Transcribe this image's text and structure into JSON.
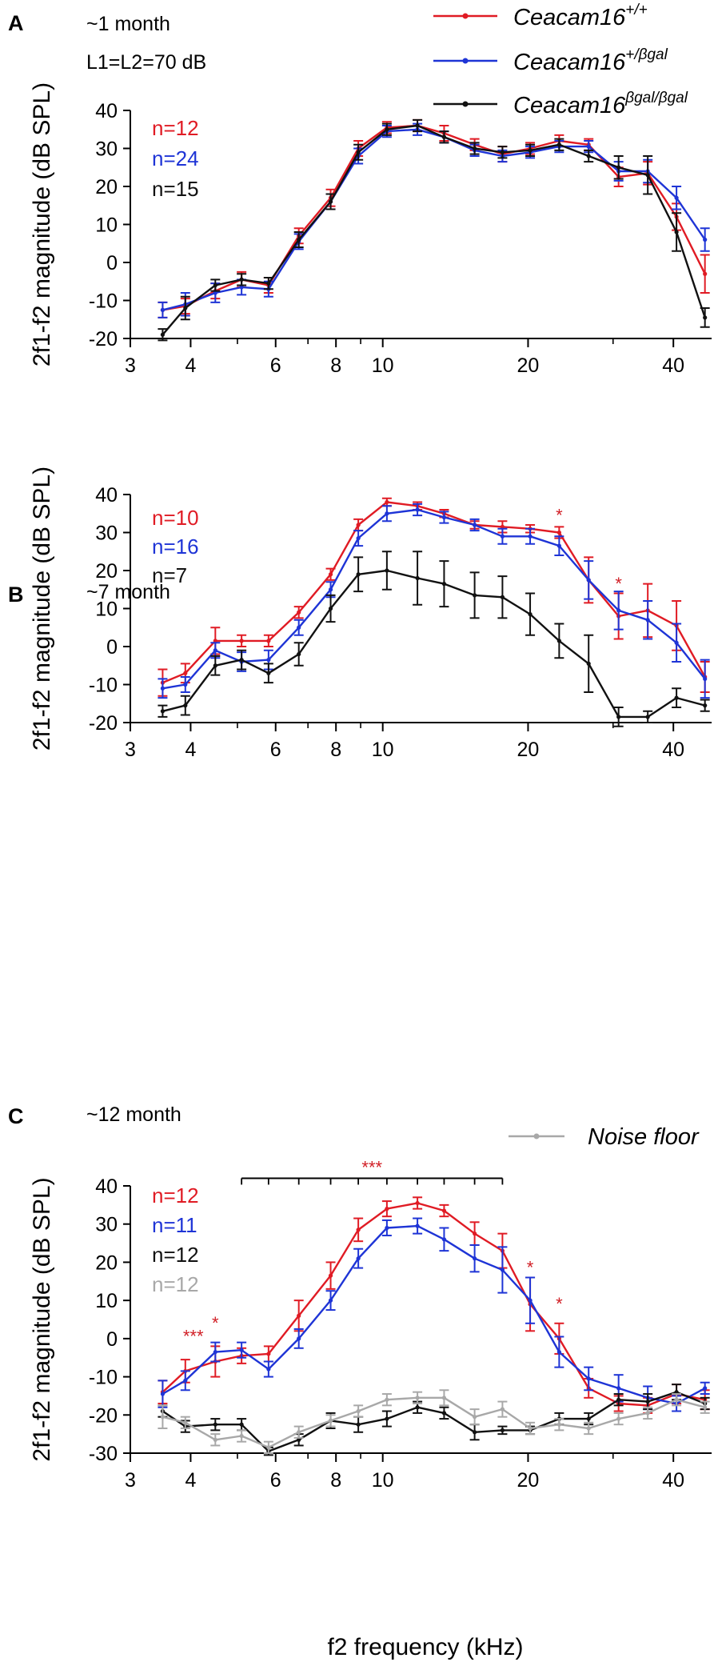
{
  "colors": {
    "wt": "#e01b24",
    "het": "#1e34d6",
    "ko": "#111111",
    "noise": "#a8a8a8",
    "star": "#d11f26"
  },
  "legend": [
    {
      "key": "wt",
      "gene": "Ceacam16",
      "genotype": "+/+",
      "color": "#e01b24"
    },
    {
      "key": "het",
      "gene": "Ceacam16",
      "genotype": "+/βgal",
      "color": "#1e34d6"
    },
    {
      "key": "ko",
      "gene": "Ceacam16",
      "genotype": "βgal/βgal",
      "color": "#111111"
    }
  ],
  "noise_legend": {
    "label": "Noise floor",
    "color": "#a8a8a8"
  },
  "xlabel": "f2 frequency (kHz)",
  "ylabel": "2f1-f2 magnitude (dB SPL)",
  "chart_data": [
    {
      "panel": "A",
      "type": "line",
      "title": "~1 month",
      "condition": "L1=L2=70 dB",
      "xscale": "log",
      "xlim": [
        3,
        48
      ],
      "x_ticks": [
        3,
        4,
        6,
        8,
        10,
        20,
        40
      ],
      "ylim": [
        -20,
        40
      ],
      "y_ticks": [
        -20,
        -10,
        0,
        10,
        20,
        30,
        40
      ],
      "n_labels": [
        {
          "text": "n=12",
          "series": "wt"
        },
        {
          "text": "n=24",
          "series": "het"
        },
        {
          "text": "n=15",
          "series": "ko"
        }
      ],
      "x": [
        3.5,
        3.9,
        4.5,
        5.1,
        5.8,
        6.7,
        7.8,
        8.9,
        10.2,
        11.8,
        13.4,
        15.5,
        17.7,
        20.2,
        23.2,
        26.7,
        30.8,
        35.4,
        40.6,
        46.5
      ],
      "series": [
        {
          "name": "Ceacam16+/+",
          "key": "wt",
          "values": [
            -12.5,
            -11.5,
            -7.5,
            -4.5,
            -6,
            7,
            17,
            30,
            35.5,
            36,
            34,
            31,
            28.5,
            30,
            32,
            31,
            22.5,
            23.5,
            12,
            -3
          ],
          "err": [
            2,
            2,
            2,
            2,
            2,
            2,
            2.2,
            2,
            1.5,
            1.5,
            2,
            1.5,
            2,
            1.5,
            1.5,
            1.5,
            2.5,
            3,
            3.5,
            5
          ]
        },
        {
          "name": "Ceacam16+/βgal",
          "key": "het",
          "values": [
            -12.5,
            -11,
            -8,
            -6.5,
            -7,
            5.5,
            16,
            28,
            34.5,
            35,
            33,
            29.5,
            28,
            29,
            30.5,
            30.5,
            24,
            24,
            17,
            6
          ],
          "err": [
            2,
            3,
            2.5,
            2,
            2,
            2,
            2,
            2,
            1.5,
            1.5,
            1.5,
            1.5,
            1.5,
            1.5,
            1.5,
            1.5,
            2.5,
            3,
            3,
            3
          ]
        },
        {
          "name": "Ceacam16βgal/βgal",
          "key": "ko",
          "values": [
            -19,
            -12,
            -6,
            -4.5,
            -5.5,
            6,
            16,
            29,
            35,
            36,
            33,
            30,
            29,
            29.5,
            31,
            28,
            25,
            23,
            8,
            -14.5
          ],
          "err": [
            1.5,
            3,
            1.5,
            1.5,
            1.5,
            2,
            2,
            2,
            1.5,
            1.5,
            1.5,
            1.5,
            1.5,
            1.5,
            1.5,
            1.5,
            3,
            5,
            5,
            2.5
          ]
        }
      ]
    },
    {
      "panel": "B",
      "type": "line",
      "title": "~7 month",
      "xscale": "log",
      "xlim": [
        3,
        48
      ],
      "x_ticks": [
        3,
        4,
        6,
        8,
        10,
        20,
        40
      ],
      "ylim": [
        -20,
        40
      ],
      "y_ticks": [
        -20,
        -10,
        0,
        10,
        20,
        30,
        40
      ],
      "n_labels": [
        {
          "text": "n=10",
          "series": "wt"
        },
        {
          "text": "n=16",
          "series": "het"
        },
        {
          "text": "n=7",
          "series": "ko"
        }
      ],
      "x": [
        3.5,
        3.9,
        4.5,
        5.1,
        5.8,
        6.7,
        7.8,
        8.9,
        10.2,
        11.8,
        13.4,
        15.5,
        17.7,
        20.2,
        23.2,
        26.7,
        30.8,
        35.4,
        40.6,
        46.5
      ],
      "series": [
        {
          "name": "Ceacam16+/+",
          "key": "wt",
          "values": [
            -9.5,
            -7,
            1.5,
            1.5,
            1.5,
            9,
            19,
            32,
            38,
            37,
            35,
            32,
            31.5,
            31,
            30,
            17.5,
            8,
            9.5,
            5.5,
            -8
          ],
          "err": [
            3.5,
            2.5,
            3.5,
            1.5,
            1.5,
            1.5,
            1.5,
            1.5,
            1,
            1,
            1,
            1,
            1.5,
            1,
            1.5,
            6,
            6,
            7,
            6.5,
            4
          ]
        },
        {
          "name": "Ceacam16+/βgal",
          "key": "het",
          "values": [
            -11,
            -10,
            -1,
            -4,
            -3.5,
            5,
            15,
            28.5,
            35,
            36,
            34,
            32,
            29,
            29,
            26.5,
            17.5,
            9.5,
            7,
            1,
            -8.5
          ],
          "err": [
            2.5,
            2,
            2,
            2.5,
            2.5,
            2,
            2,
            2,
            2,
            1.5,
            1.5,
            1.5,
            2,
            2,
            2.5,
            5,
            5,
            5,
            5,
            5
          ]
        },
        {
          "name": "Ceacam16βgal/βgal",
          "key": "ko",
          "values": [
            -17,
            -15.5,
            -5,
            -3.5,
            -7,
            -2,
            10,
            19,
            20,
            18,
            16.5,
            13.5,
            13,
            8.5,
            1.5,
            -4.5,
            -18.5,
            -18.5,
            -13.5,
            -15.5
          ],
          "err": [
            1.5,
            2.5,
            2.5,
            2.5,
            2.5,
            3,
            3.5,
            4.5,
            5,
            7,
            6,
            6,
            5.5,
            5.5,
            4.5,
            7.5,
            2.5,
            1.5,
            2.5,
            1.5
          ]
        }
      ],
      "annotations": [
        {
          "text": "*",
          "x": 23.2,
          "y": 33
        },
        {
          "text": "*",
          "x": 30.8,
          "y": 15
        }
      ]
    },
    {
      "panel": "C",
      "type": "line",
      "title": "~12 month",
      "xscale": "log",
      "xlim": [
        3,
        48
      ],
      "x_ticks": [
        3,
        4,
        6,
        8,
        10,
        20,
        40
      ],
      "ylim": [
        -30,
        40
      ],
      "y_ticks": [
        -30,
        -20,
        -10,
        0,
        10,
        20,
        30,
        40
      ],
      "n_labels": [
        {
          "text": "n=12",
          "series": "wt"
        },
        {
          "text": "n=11",
          "series": "het"
        },
        {
          "text": "n=12",
          "series": "ko"
        },
        {
          "text": "n=12",
          "series": "noise"
        }
      ],
      "x": [
        3.5,
        3.9,
        4.5,
        5.1,
        5.8,
        6.7,
        7.8,
        8.9,
        10.2,
        11.8,
        13.4,
        15.5,
        17.7,
        20.2,
        23.2,
        26.7,
        30.8,
        35.4,
        40.6,
        46.5
      ],
      "series": [
        {
          "name": "Ceacam16+/+",
          "key": "wt",
          "values": [
            -14,
            -8.5,
            -6,
            -4.5,
            -4,
            6,
            16.5,
            28.5,
            34,
            35.5,
            33.5,
            27.5,
            23,
            9,
            0,
            -13,
            -17,
            -17.5,
            -14.5,
            -16
          ],
          "err": [
            3,
            3,
            4,
            2,
            2,
            4,
            3.5,
            3,
            2,
            1.5,
            1.5,
            3,
            4.5,
            7,
            4,
            2.5,
            2,
            2,
            2.5,
            2.5
          ]
        },
        {
          "name": "Ceacam16+/βgal",
          "key": "het",
          "values": [
            -14.5,
            -11,
            -3.5,
            -3,
            -8,
            0,
            10,
            21,
            29,
            29.5,
            26,
            21,
            18,
            10,
            -3.5,
            -10.5,
            -13,
            -15.5,
            -17,
            -13
          ],
          "err": [
            3.5,
            2.5,
            2.5,
            2,
            2,
            2.5,
            2.5,
            2.5,
            2,
            2,
            3,
            3.5,
            6,
            6,
            4,
            3,
            3.5,
            3,
            2,
            1.5
          ]
        },
        {
          "name": "Ceacam16βgal/βgal",
          "key": "ko",
          "values": [
            -19,
            -23,
            -22.5,
            -22.5,
            -29.5,
            -26.5,
            -21.5,
            -22.5,
            -21,
            -18,
            -19.5,
            -24.5,
            -24,
            -24,
            -21,
            -21,
            -16,
            -16.5,
            -14,
            -17
          ],
          "err": [
            1.5,
            1.5,
            1.5,
            1.5,
            1,
            1.5,
            2,
            2,
            2,
            1.5,
            1.5,
            2,
            1,
            1,
            1.5,
            1.5,
            1.5,
            2,
            2,
            1.5
          ]
        },
        {
          "name": "Noise floor",
          "key": "noise",
          "values": [
            -20.5,
            -22,
            -26.5,
            -25.5,
            -28.5,
            -24.5,
            -21.5,
            -19,
            -16,
            -15.5,
            -15.5,
            -20.5,
            -18.5,
            -23.5,
            -22.5,
            -23.5,
            -21,
            -19.5,
            -16,
            -18
          ],
          "err": [
            3,
            1.5,
            1.5,
            1.5,
            1.5,
            1.5,
            1.5,
            1.5,
            1.5,
            1.5,
            2,
            2,
            2,
            1.5,
            1.5,
            1.5,
            1.5,
            1.5,
            1.5,
            1.5
          ]
        }
      ],
      "significance_bracket": {
        "text": "***",
        "x_from": 5.1,
        "x_to": 17.7,
        "y": 42
      },
      "annotations": [
        {
          "text": "***",
          "x": 4.05,
          "y": -1
        },
        {
          "text": "*",
          "x": 4.5,
          "y": 2.5
        },
        {
          "text": "*",
          "x": 20.2,
          "y": 17
        },
        {
          "text": "*",
          "x": 23.2,
          "y": 7.5
        }
      ]
    }
  ]
}
